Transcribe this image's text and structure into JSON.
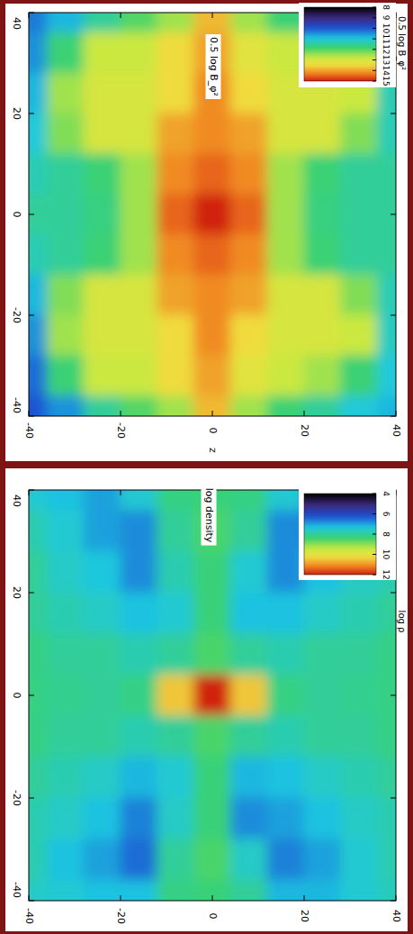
{
  "chart_data": [
    {
      "type": "heatmap",
      "title": "0.5 log B_φ²",
      "x_label": "z",
      "x": [
        -40,
        -32,
        -24,
        -16,
        -8,
        0,
        8,
        16,
        24,
        32,
        40
      ],
      "y": [
        40,
        32,
        24,
        16,
        8,
        0,
        -8,
        -16,
        -24,
        -32,
        -40
      ],
      "cells": [
        [
          10.3,
          10.8,
          11.5,
          12,
          12.5,
          13.8,
          12.5,
          11.8,
          11.5,
          11.2,
          11
        ],
        [
          10.5,
          11.8,
          12.8,
          12.8,
          13.5,
          14,
          13.2,
          12.8,
          12.8,
          12,
          11
        ],
        [
          10.8,
          12.5,
          13,
          13,
          13.5,
          14.2,
          13.5,
          13,
          13,
          12.8,
          11.3
        ],
        [
          11,
          12.3,
          13,
          13,
          14,
          14.2,
          14,
          13,
          13,
          12.3,
          11.3
        ],
        [
          11.3,
          11.5,
          11.8,
          12.5,
          14.2,
          14.5,
          14.2,
          12.5,
          11.8,
          11.5,
          11.5
        ],
        [
          11.5,
          11.5,
          11.7,
          12.5,
          14.5,
          15,
          14.5,
          12.5,
          11.7,
          11.5,
          11.5
        ],
        [
          11.3,
          11.5,
          11.8,
          12.5,
          14.2,
          14.5,
          14.2,
          12.5,
          11.8,
          11.5,
          11.5
        ],
        [
          10.8,
          12.3,
          13,
          13,
          14,
          14.2,
          14,
          13,
          13,
          12.3,
          11.3
        ],
        [
          10.5,
          12.5,
          13,
          13,
          13.5,
          14.2,
          13.5,
          13,
          13,
          12.8,
          11.2
        ],
        [
          10.2,
          11.8,
          12.8,
          12.8,
          13.5,
          14,
          13.2,
          12.8,
          12.5,
          11.8,
          11
        ],
        [
          10,
          10.5,
          11.5,
          12,
          12.5,
          13.8,
          12.5,
          11.8,
          11.5,
          11,
          10.8
        ]
      ],
      "xlim": [
        -40,
        40
      ],
      "ylim": [
        -40,
        40
      ],
      "xticks": [
        -40,
        -20,
        0,
        20,
        40
      ],
      "yticks": [
        -40,
        -20,
        0,
        20,
        40
      ],
      "colorbar": {
        "label": "0.5 log B_φ²",
        "range": [
          8,
          15
        ],
        "ticks": [
          8,
          9,
          10,
          11,
          12,
          13,
          14,
          15
        ]
      }
    },
    {
      "type": "heatmap",
      "title": "log density",
      "x": [
        -40,
        -32,
        -24,
        -16,
        -8,
        0,
        8,
        16,
        24,
        32,
        40
      ],
      "y": [
        40,
        32,
        24,
        16,
        8,
        0,
        -8,
        -16,
        -24,
        -32,
        -40
      ],
      "cells": [
        [
          7.5,
          7.3,
          7,
          7.5,
          8.2,
          8.3,
          8.2,
          7.5,
          7,
          7.3,
          7.6
        ],
        [
          7.8,
          7.5,
          7,
          6.8,
          8,
          8.5,
          8,
          6.8,
          6.8,
          7.3,
          7.8
        ],
        [
          8,
          7.6,
          7.4,
          6.8,
          7.8,
          8.3,
          7.5,
          6.8,
          7.3,
          7.6,
          7.8
        ],
        [
          8,
          7.8,
          7.6,
          7.3,
          7.5,
          8.3,
          7.3,
          7.3,
          7.6,
          7.8,
          8
        ],
        [
          8.2,
          8,
          8,
          7.8,
          8,
          8.5,
          8,
          7.8,
          8,
          8,
          8.2
        ],
        [
          8.2,
          8.1,
          8,
          8.2,
          10.5,
          12,
          10.5,
          8.2,
          8,
          8.1,
          8.2
        ],
        [
          8.2,
          8,
          8,
          7.8,
          8,
          8.5,
          8,
          7.8,
          8,
          8,
          8.2
        ],
        [
          8,
          7.8,
          7.6,
          7.2,
          7.5,
          8.3,
          7.2,
          7.3,
          7.6,
          7.8,
          8
        ],
        [
          7.8,
          7.6,
          7.3,
          6.7,
          7.6,
          8.3,
          6.8,
          7,
          7.3,
          7.6,
          7.8
        ],
        [
          7.8,
          7.3,
          7,
          6.5,
          8,
          8.5,
          7.6,
          6.7,
          7,
          7.5,
          7.8
        ],
        [
          7.6,
          7.5,
          7.3,
          7.3,
          8.2,
          8.3,
          8,
          7.2,
          7.2,
          7.5,
          7.7
        ]
      ],
      "xlim": [
        -40,
        40
      ],
      "ylim": [
        -40,
        40
      ],
      "xticks": [
        -40,
        -20,
        0,
        20,
        40
      ],
      "yticks": [
        -40,
        -20,
        0,
        20,
        40
      ],
      "colorbar": {
        "label": "log ρ",
        "range": [
          4,
          12
        ],
        "ticks": [
          4,
          6,
          8,
          10,
          12
        ]
      }
    }
  ]
}
